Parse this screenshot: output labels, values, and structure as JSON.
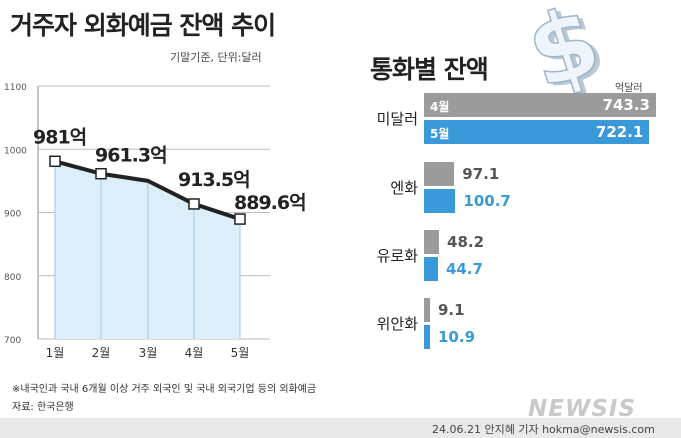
{
  "title": "거주자 외화예금 잔액 추이",
  "subtitle": "기말기준, 단위:달러",
  "chart_data": [
    {
      "type": "line",
      "title": "거주자 외화예금 잔액 추이",
      "categories": [
        "1월",
        "2월",
        "3월",
        "4월",
        "5월"
      ],
      "values": [
        981,
        961.3,
        950,
        913.5,
        889.6
      ],
      "labels": [
        "981억",
        "961.3억",
        "",
        "913.5억",
        "889.6억"
      ],
      "yticks": [
        1100,
        1000,
        900,
        800,
        700
      ],
      "ylim": [
        700,
        1100
      ],
      "colors": {
        "line": "#222222",
        "fill": "#dbeefa"
      }
    },
    {
      "type": "bar",
      "title": "통화별 잔액",
      "unit": "억달러",
      "categories": [
        "미달러",
        "엔화",
        "유로화",
        "위안화"
      ],
      "series": [
        {
          "name": "4월",
          "values": [
            743.3,
            97.1,
            48.2,
            9.1
          ],
          "color": "#9b9b9b"
        },
        {
          "name": "5월",
          "values": [
            722.1,
            100.7,
            44.7,
            10.9
          ],
          "color": "#3a9ad9"
        }
      ],
      "value_labels": {
        "4월": [
          "743.3",
          "97.1",
          "48.2",
          "9.1"
        ],
        "5월": [
          "722.1",
          "100.7",
          "44.7",
          "10.9"
        ]
      }
    }
  ],
  "footnote": "※내국인과 국내 6개월 이상 거주 외국인 및 국내 외국기업 등의 외화예금",
  "source": "자료: 한국은행",
  "credit": "24.06.21 안지혜 기자 hokma@newsis.com",
  "watermark": "NEWSIS",
  "icon": "dollar-sign-icon"
}
